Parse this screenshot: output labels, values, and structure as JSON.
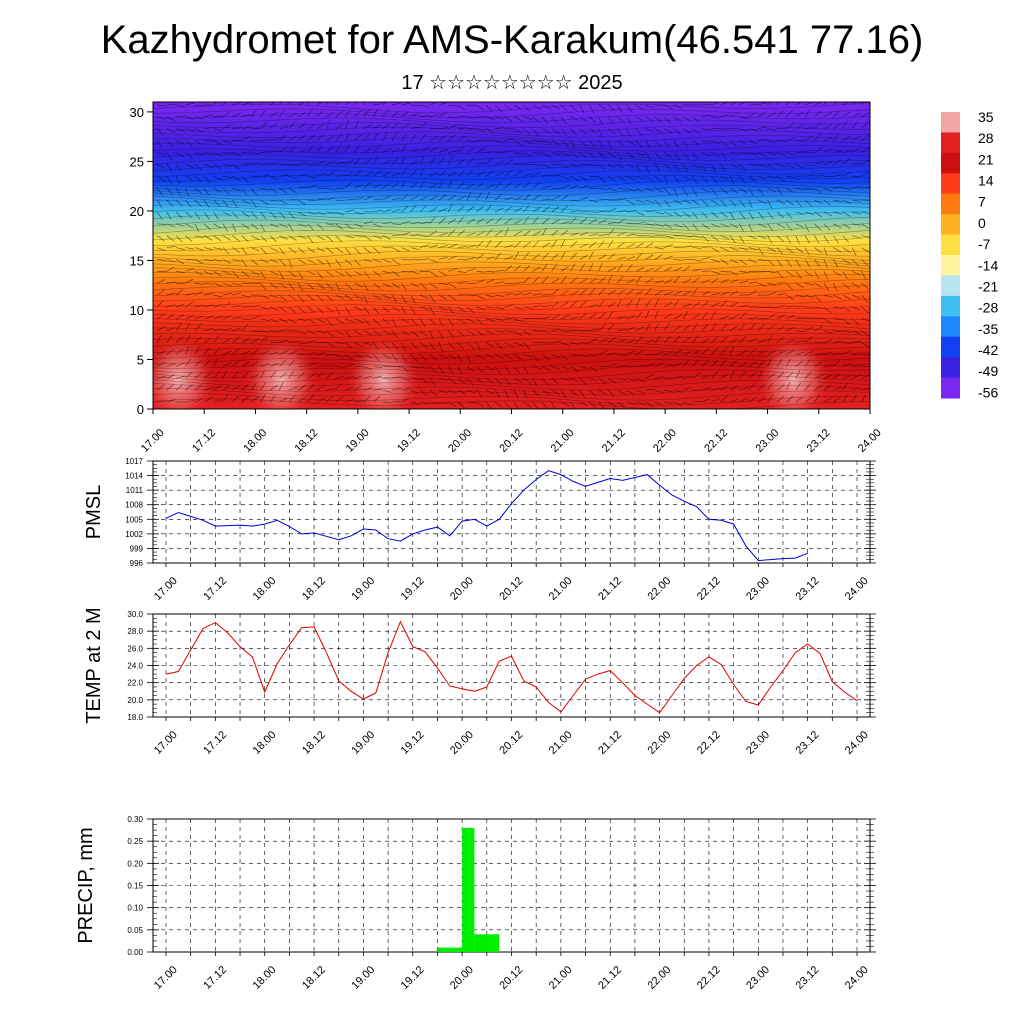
{
  "header": {
    "title": "Kazhydromet for AMS-Karakum(46.541 77.16)",
    "subtitle": "17 ☆☆☆☆☆☆☆☆ 2025"
  },
  "x_tick_labels": [
    "17.00",
    "17.12",
    "18.00",
    "18.12",
    "19.00",
    "19.12",
    "20.00",
    "20.12",
    "21.00",
    "21.12",
    "22.00",
    "22.12",
    "23.00",
    "23.12",
    "24.00"
  ],
  "chart_data": [
    {
      "type": "heatmap",
      "title": "",
      "xlabel": "",
      "ylabel": "",
      "y_ticks": [
        0,
        5,
        10,
        15,
        20,
        25,
        30
      ],
      "ylim": [
        0,
        31
      ],
      "colorbar": {
        "labels": [
          "35",
          "28",
          "21",
          "14",
          "7",
          "0",
          "-7",
          "-14",
          "-21",
          "-28",
          "-35",
          "-42",
          "-49",
          "-56"
        ],
        "colors": [
          "#f4a6a6",
          "#e32020",
          "#cc1010",
          "#ff3b1a",
          "#ff7a10",
          "#ffb020",
          "#ffe040",
          "#fff4a0",
          "#b8e4ee",
          "#40c0f0",
          "#1e88ff",
          "#1040f0",
          "#3a20e0",
          "#7a28f0"
        ]
      },
      "description_layers": [
        {
          "level": 0,
          "value": 25
        },
        {
          "level": 5,
          "value": 21
        },
        {
          "level": 10,
          "value": 16
        },
        {
          "level": 13,
          "value": 6
        },
        {
          "level": 15,
          "value": -2
        },
        {
          "level": 17,
          "value": -10
        },
        {
          "level": 20,
          "value": -28
        },
        {
          "level": 23,
          "value": -45
        },
        {
          "level": 26,
          "value": -50
        },
        {
          "level": 31,
          "value": -58
        }
      ]
    },
    {
      "type": "line",
      "ylabel": "PMSL",
      "ylim": [
        996,
        1017
      ],
      "y_ticks": [
        996,
        999,
        1002,
        1005,
        1008,
        1011,
        1014,
        1017
      ],
      "series": [
        {
          "color": "#0000dd",
          "x_step_hours": 3,
          "values": [
            1005.2,
            1006.4,
            1005.6,
            1004.8,
            1003.6,
            1003.7,
            1003.8,
            1003.6,
            1004.0,
            1004.8,
            1003.5,
            1002.0,
            1002.2,
            1001.5,
            1000.8,
            1001.6,
            1003.0,
            1002.8,
            1001.0,
            1000.5,
            1002.0,
            1002.8,
            1003.4,
            1001.6,
            1004.6,
            1005.0,
            1003.6,
            1005.0,
            1008.2,
            1011.0,
            1013.2,
            1015.0,
            1014.2,
            1012.8,
            1011.8,
            1012.6,
            1013.4,
            1013.0,
            1013.6,
            1014.2,
            1012.0,
            1010.0,
            1008.7,
            1007.6,
            1005.0,
            1004.8,
            1004.0,
            999.5,
            996.5,
            996.7,
            996.9,
            997.0,
            998.0
          ]
        }
      ]
    },
    {
      "type": "line",
      "ylabel": "TEMP at 2 M",
      "ylim": [
        18.0,
        30.0
      ],
      "y_ticks": [
        "18.0",
        "20.0",
        "22.0",
        "24.0",
        "26.0",
        "28.0",
        "30.0"
      ],
      "series": [
        {
          "color": "#dd0000",
          "x_step_hours": 3,
          "values": [
            23.0,
            23.3,
            25.8,
            28.3,
            29.0,
            27.8,
            26.2,
            25.0,
            20.9,
            24.2,
            26.4,
            28.4,
            28.5,
            25.5,
            22.2,
            21.0,
            20.1,
            20.8,
            25.5,
            29.1,
            26.2,
            25.6,
            23.7,
            21.6,
            21.3,
            21.0,
            21.5,
            24.5,
            25.1,
            22.2,
            21.5,
            19.7,
            18.6,
            20.5,
            22.4,
            23.0,
            23.4,
            22.0,
            20.5,
            19.5,
            18.5,
            20.5,
            22.5,
            24.0,
            25.0,
            24.1,
            21.8,
            19.8,
            19.4,
            21.5,
            23.4,
            25.5,
            26.5,
            25.4,
            22.1,
            20.9,
            19.9
          ]
        }
      ]
    },
    {
      "type": "bar",
      "ylabel": "PRECIP, mm",
      "ylim": [
        0.0,
        0.3
      ],
      "y_ticks": [
        "0.00",
        "0.05",
        "0.10",
        "0.15",
        "0.20",
        "0.25",
        "0.30"
      ],
      "bar_color": "#00ee00",
      "bars": [
        {
          "start": "19.18",
          "end": "20.00",
          "value": 0.01
        },
        {
          "start": "20.00",
          "end": "20.03",
          "value": 0.28
        },
        {
          "start": "20.03",
          "end": "20.09",
          "value": 0.04
        }
      ]
    }
  ]
}
